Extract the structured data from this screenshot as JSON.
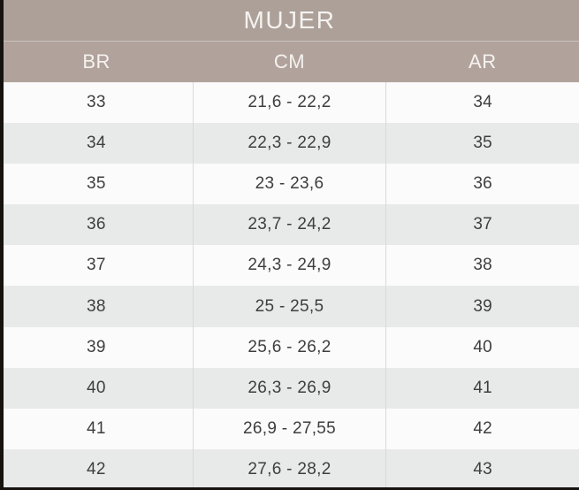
{
  "chart_data": {
    "type": "table",
    "title": "MUJER",
    "columns": [
      "BR",
      "CM",
      "AR"
    ],
    "rows": [
      [
        "33",
        "21,6 - 22,2",
        "34"
      ],
      [
        "34",
        "22,3 - 22,9",
        "35"
      ],
      [
        "35",
        "23 - 23,6",
        "36"
      ],
      [
        "36",
        "23,7 - 24,2",
        "37"
      ],
      [
        "37",
        "24,3 - 24,9",
        "38"
      ],
      [
        "38",
        "25 - 25,5",
        "39"
      ],
      [
        "39",
        "25,6 - 26,2",
        "40"
      ],
      [
        "40",
        "26,3 - 26,9",
        "41"
      ],
      [
        "41",
        "26,9 - 27,55",
        "42"
      ],
      [
        "42",
        "27,6 - 28,2",
        "43"
      ]
    ],
    "layout": {
      "grid": "alternating-row-shading",
      "legend": "none",
      "column_alignment": "center"
    },
    "colors": {
      "title_band": "#aca099",
      "header_band": "#b1a39c",
      "header_text": "#f5f2f0",
      "row_light": "#fbfbfb",
      "row_shaded": "#e8e9e9",
      "row_text": "#3e3e3e",
      "column_divider": "#d9d9d9",
      "edge_strip": "#15120f"
    }
  }
}
